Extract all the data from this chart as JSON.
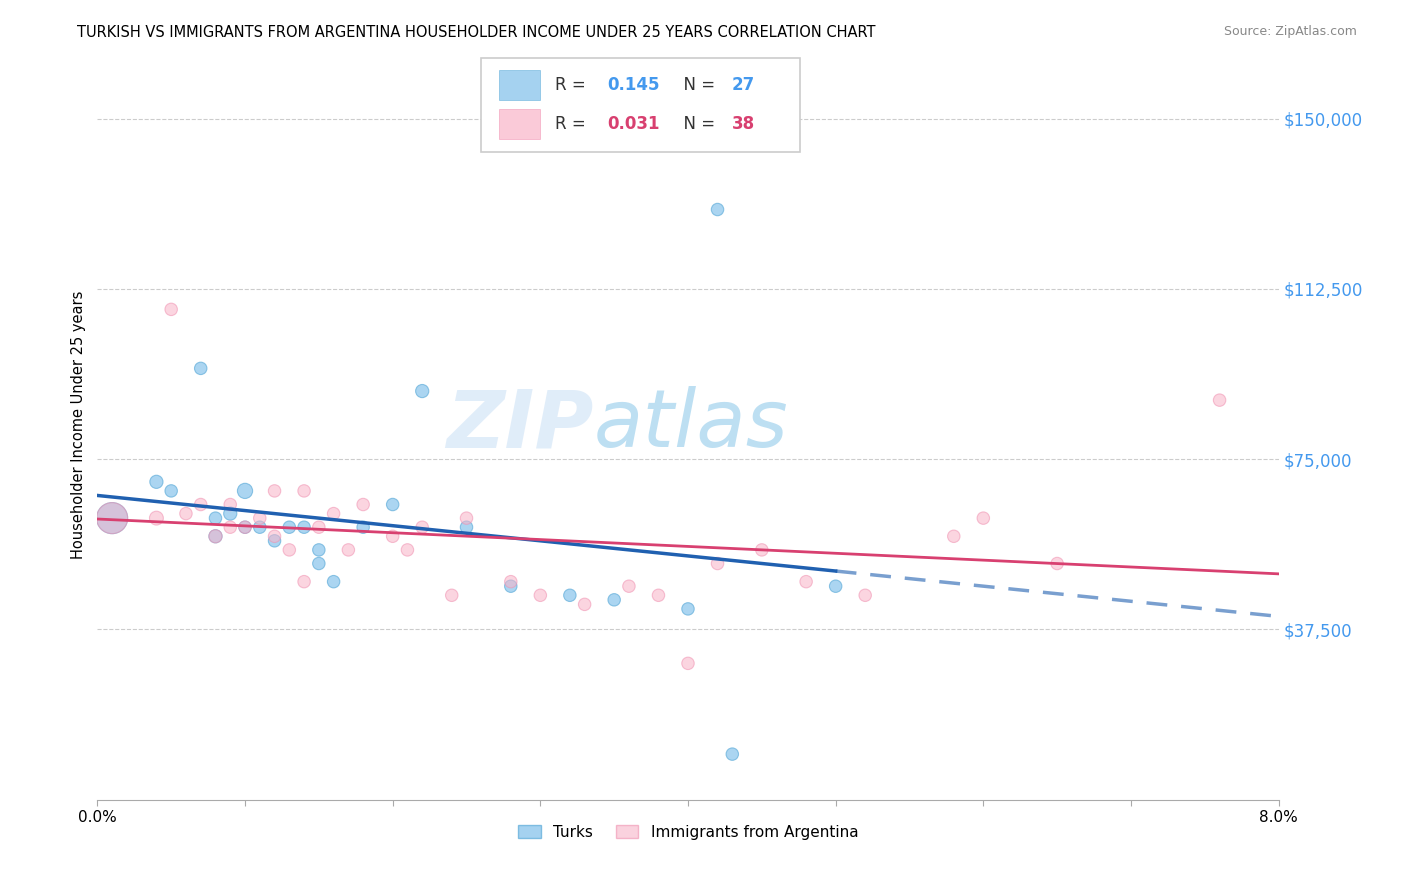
{
  "title": "TURKISH VS IMMIGRANTS FROM ARGENTINA HOUSEHOLDER INCOME UNDER 25 YEARS CORRELATION CHART",
  "source": "Source: ZipAtlas.com",
  "ylabel": "Householder Income Under 25 years",
  "r_turks": 0.145,
  "n_turks": 27,
  "r_argentina": 0.031,
  "n_argentina": 38,
  "xlim": [
    0.0,
    0.08
  ],
  "ylim": [
    0,
    165000
  ],
  "yticks": [
    37500,
    75000,
    112500,
    150000
  ],
  "ytick_labels": [
    "$37,500",
    "$75,000",
    "$112,500",
    "$150,000"
  ],
  "color_turks": "#7fbfea",
  "color_turks_edge": "#5aaad8",
  "color_argentina": "#f8b4c8",
  "color_argentina_edge": "#f090b0",
  "line_color_turks": "#2060b0",
  "line_color_argentina": "#d84070",
  "watermark_zip": "ZIP",
  "watermark_atlas": "atlas",
  "turks_x": [
    0.001,
    0.004,
    0.005,
    0.007,
    0.008,
    0.008,
    0.009,
    0.01,
    0.01,
    0.011,
    0.012,
    0.013,
    0.014,
    0.015,
    0.015,
    0.016,
    0.018,
    0.02,
    0.022,
    0.025,
    0.028,
    0.032,
    0.035,
    0.04,
    0.042,
    0.05,
    0.043
  ],
  "turks_y": [
    62000,
    70000,
    68000,
    95000,
    62000,
    58000,
    63000,
    68000,
    60000,
    60000,
    57000,
    60000,
    60000,
    55000,
    52000,
    48000,
    60000,
    65000,
    90000,
    60000,
    47000,
    45000,
    44000,
    42000,
    130000,
    47000,
    10000
  ],
  "argentina_x": [
    0.001,
    0.004,
    0.005,
    0.006,
    0.007,
    0.008,
    0.009,
    0.009,
    0.01,
    0.011,
    0.012,
    0.012,
    0.013,
    0.014,
    0.014,
    0.015,
    0.016,
    0.017,
    0.018,
    0.02,
    0.021,
    0.022,
    0.024,
    0.025,
    0.028,
    0.03,
    0.033,
    0.036,
    0.038,
    0.04,
    0.042,
    0.045,
    0.048,
    0.052,
    0.058,
    0.06,
    0.065,
    0.076
  ],
  "argentina_y": [
    62000,
    62000,
    108000,
    63000,
    65000,
    58000,
    65000,
    60000,
    60000,
    62000,
    58000,
    68000,
    55000,
    48000,
    68000,
    60000,
    63000,
    55000,
    65000,
    58000,
    55000,
    60000,
    45000,
    62000,
    48000,
    45000,
    43000,
    47000,
    45000,
    30000,
    52000,
    55000,
    48000,
    45000,
    58000,
    62000,
    52000,
    88000
  ],
  "turks_size": [
    500,
    90,
    80,
    80,
    80,
    90,
    90,
    120,
    80,
    80,
    80,
    80,
    80,
    80,
    80,
    80,
    80,
    80,
    90,
    80,
    80,
    80,
    80,
    80,
    80,
    80,
    80
  ],
  "argentina_size": [
    500,
    100,
    80,
    80,
    80,
    90,
    80,
    80,
    80,
    80,
    80,
    80,
    80,
    80,
    80,
    80,
    80,
    80,
    80,
    80,
    80,
    80,
    80,
    80,
    80,
    80,
    80,
    80,
    80,
    80,
    80,
    80,
    80,
    80,
    80,
    80,
    80,
    80
  ]
}
